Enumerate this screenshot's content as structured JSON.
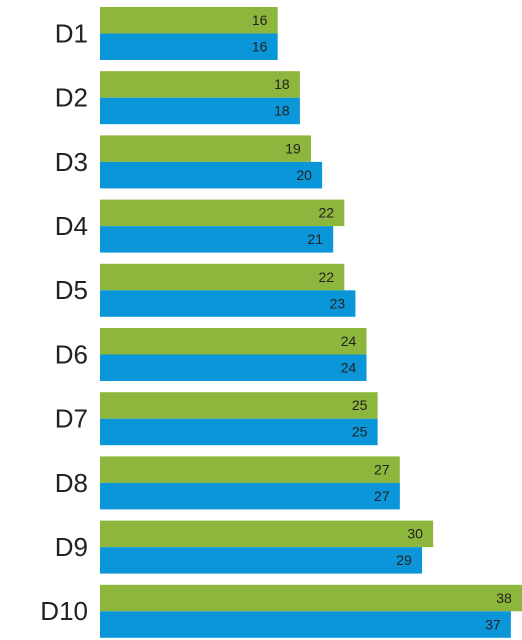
{
  "chart_data": {
    "type": "bar",
    "orientation": "horizontal",
    "categories": [
      "D1",
      "D2",
      "D3",
      "D4",
      "D5",
      "D6",
      "D7",
      "D8",
      "D9",
      "D10"
    ],
    "series": [
      {
        "color": "#8db63c",
        "values": [
          16,
          18,
          19,
          22,
          22,
          24,
          25,
          27,
          30,
          38
        ]
      },
      {
        "color": "#0a96d8",
        "values": [
          16,
          18,
          20,
          21,
          23,
          24,
          25,
          27,
          29,
          37
        ]
      }
    ]
  }
}
